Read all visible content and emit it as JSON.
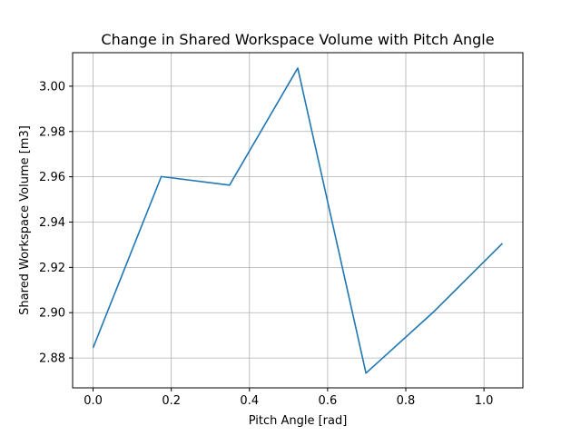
{
  "chart_data": {
    "type": "line",
    "title": "Change in Shared Workspace Volume with Pitch Angle",
    "xlabel": "Pitch Angle [rad]",
    "ylabel": "Shared Workspace Volume [m3]",
    "xlim": [
      -0.05236,
      1.09956
    ],
    "ylim": [
      2.8668,
      3.0148
    ],
    "x_ticks": [
      0.0,
      0.2,
      0.4,
      0.6,
      0.8,
      1.0
    ],
    "x_tick_labels": [
      "0.0",
      "0.2",
      "0.4",
      "0.6",
      "0.8",
      "1.0"
    ],
    "y_ticks": [
      2.88,
      2.9,
      2.92,
      2.94,
      2.96,
      2.98,
      3.0
    ],
    "y_tick_labels": [
      "2.88",
      "2.90",
      "2.92",
      "2.94",
      "2.96",
      "2.98",
      "3.00"
    ],
    "grid": true,
    "series": [
      {
        "color": "#1f77b4",
        "x": [
          0.0,
          0.1745,
          0.3491,
          0.5236,
          0.6981,
          0.8727,
          1.0472
        ],
        "y": [
          2.8845,
          2.9601,
          2.9563,
          3.008,
          2.8733,
          2.9006,
          2.9306
        ]
      }
    ]
  }
}
